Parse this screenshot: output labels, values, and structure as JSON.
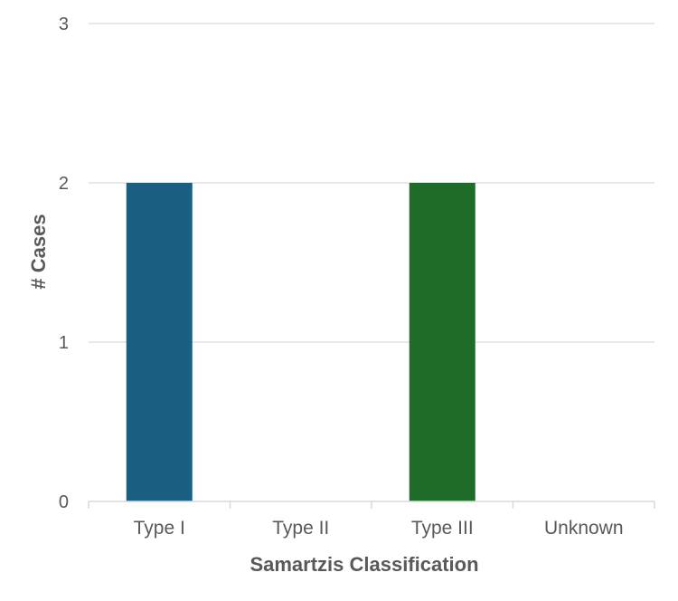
{
  "chart_data": {
    "type": "bar",
    "categories": [
      "Type I",
      "Type II",
      "Type III",
      "Unknown"
    ],
    "values": [
      2,
      0,
      2,
      0
    ],
    "colors": [
      "#1a5e82",
      "#1a5e82",
      "#1e6b2a",
      "#1e6b2a"
    ],
    "xlabel": "Samartzis Classification",
    "ylabel": "# Cases",
    "ylim": [
      0,
      3
    ],
    "yticks": [
      "0",
      "1",
      "2",
      "3"
    ],
    "grid": true,
    "legend": "none"
  }
}
